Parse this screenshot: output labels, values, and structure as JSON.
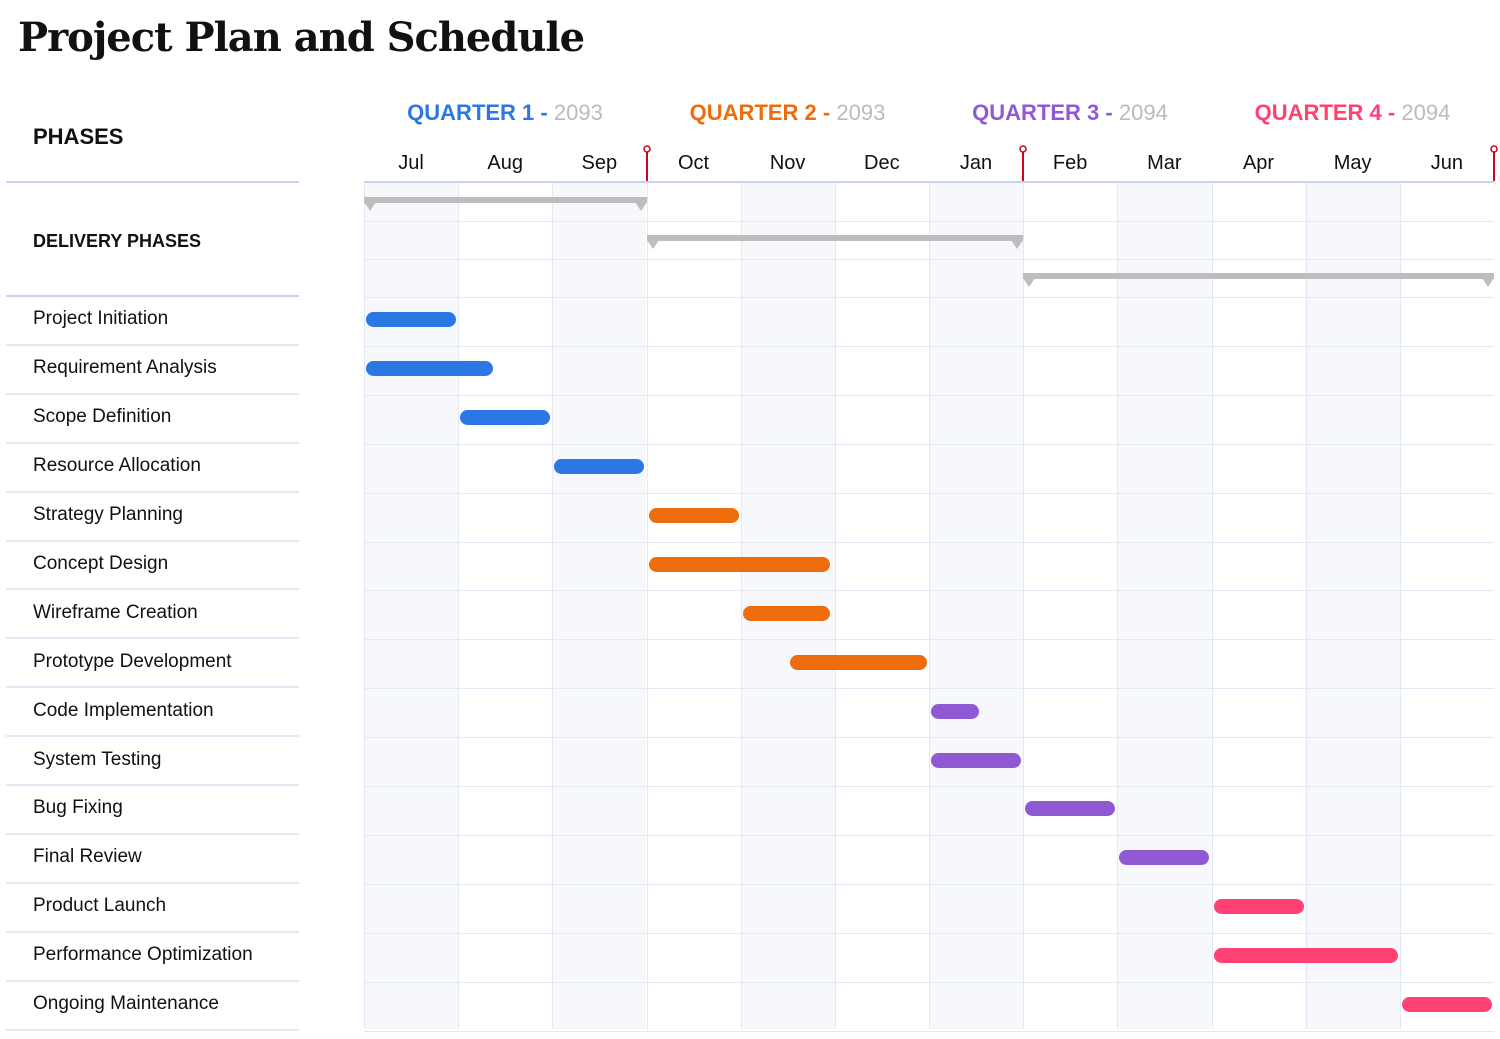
{
  "title": "Project Plan and Schedule",
  "chart_data": {
    "type": "gantt",
    "title": "Project Plan and Schedule",
    "left_header": "PHASES",
    "section_label": "DELIVERY PHASES",
    "quarters": [
      {
        "label": "QUARTER 1 -",
        "year": "2093",
        "color": "#2b78e4"
      },
      {
        "label": "QUARTER 2 -",
        "year": "2093",
        "color": "#ef6c0c"
      },
      {
        "label": "QUARTER 3 -",
        "year": "2094",
        "color": "#9059d4"
      },
      {
        "label": "QUARTER 4 -",
        "year": "2094",
        "color": "#ff4273"
      }
    ],
    "months": [
      "Jul",
      "Aug",
      "Sep",
      "Oct",
      "Nov",
      "Dec",
      "Jan",
      "Feb",
      "Mar",
      "Apr",
      "May",
      "Jun"
    ],
    "timeline_start": "2093-07-01",
    "milestones": [
      "2093-10-01",
      "2094-02-01",
      "2094-07-01"
    ],
    "delivery_phases": [
      {
        "start": "2093-07-01",
        "end": "2093-10-01"
      },
      {
        "start": "2093-10-01",
        "end": "2094-02-01"
      },
      {
        "start": "2094-02-01",
        "end": "2094-07-01"
      }
    ],
    "tasks": [
      {
        "name": "Project Initiation",
        "start": "2093-07-01",
        "end": "2093-08-01",
        "quarter": 0
      },
      {
        "name": "Requirement Analysis",
        "start": "2093-07-01",
        "end": "2093-08-13",
        "quarter": 0
      },
      {
        "name": "Scope Definition",
        "start": "2093-08-01",
        "end": "2093-09-01",
        "quarter": 0
      },
      {
        "name": "Resource Allocation",
        "start": "2093-09-01",
        "end": "2093-10-01",
        "quarter": 0
      },
      {
        "name": "Strategy Planning",
        "start": "2093-10-01",
        "end": "2093-11-01",
        "quarter": 1
      },
      {
        "name": "Concept Design",
        "start": "2093-10-01",
        "end": "2093-11-30",
        "quarter": 1
      },
      {
        "name": "Wireframe Creation",
        "start": "2093-11-01",
        "end": "2093-11-30",
        "quarter": 1
      },
      {
        "name": "Prototype Development",
        "start": "2093-11-16",
        "end": "2094-01-01",
        "quarter": 1
      },
      {
        "name": "Code Implementation",
        "start": "2094-01-01",
        "end": "2094-01-18",
        "quarter": 2
      },
      {
        "name": "System Testing",
        "start": "2094-01-01",
        "end": "2094-02-01",
        "quarter": 2
      },
      {
        "name": "Bug Fixing",
        "start": "2094-02-01",
        "end": "2094-03-01",
        "quarter": 2
      },
      {
        "name": "Final Review",
        "start": "2094-03-01",
        "end": "2094-04-01",
        "quarter": 2
      },
      {
        "name": "Product Launch",
        "start": "2094-04-01",
        "end": "2094-05-01",
        "quarter": 3
      },
      {
        "name": "Performance Optimization",
        "start": "2094-04-01",
        "end": "2094-06-01",
        "quarter": 3
      },
      {
        "name": "Ongoing Maintenance",
        "start": "2094-06-01",
        "end": "2094-07-01",
        "quarter": 3
      }
    ],
    "colors": {
      "phase": "#bdbdbd",
      "milestone": "#d0021b",
      "grid": "#e4e8f5",
      "shade": "#f7f8fc"
    }
  }
}
